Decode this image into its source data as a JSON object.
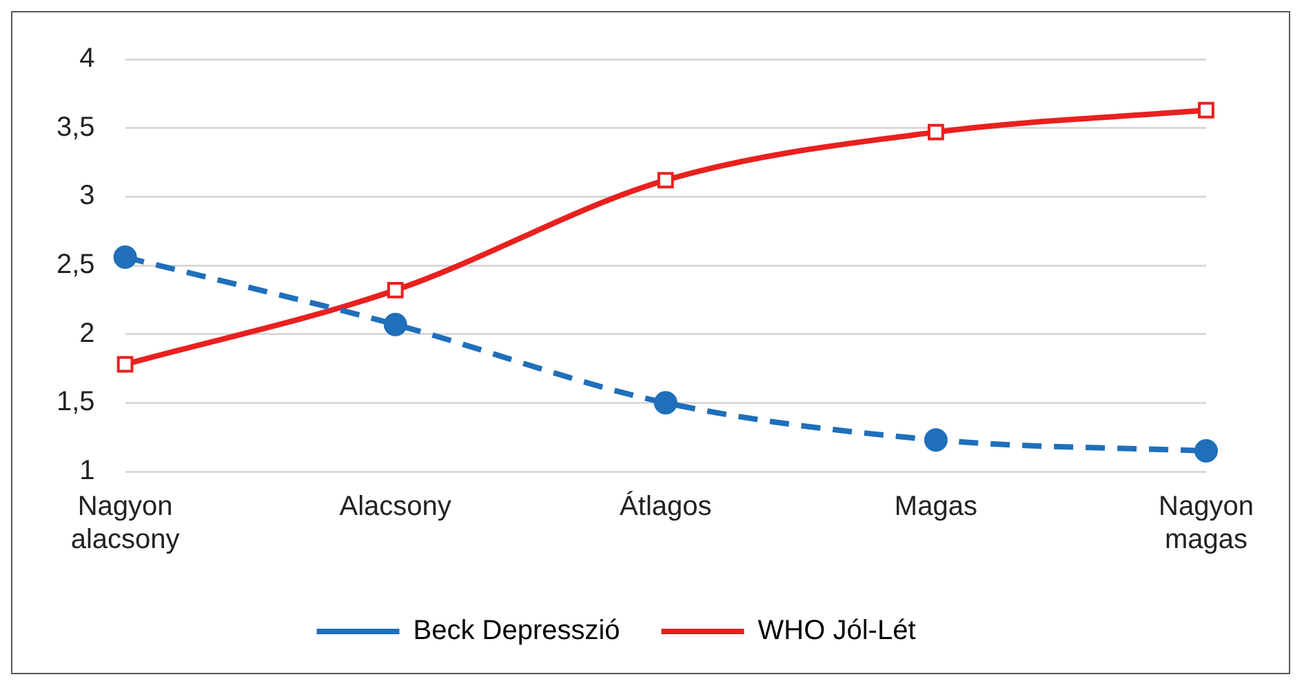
{
  "chart_data": {
    "type": "line",
    "categories": [
      "Nagyon alacsony",
      "Alacsony",
      "Átlagos",
      "Magas",
      "Nagyon magas"
    ],
    "series": [
      {
        "name": "Beck Depresszió",
        "color": "#1f6fba",
        "values": [
          2.56,
          2.07,
          1.5,
          1.23,
          1.15
        ],
        "marker": "circle",
        "line_style": "dashed"
      },
      {
        "name": "WHO Jól-Lét",
        "color": "#e8211f",
        "values": [
          1.78,
          2.32,
          3.12,
          3.47,
          3.63
        ],
        "marker": "square",
        "line_style": "solid"
      }
    ],
    "ylim": [
      1,
      4
    ],
    "yticks": [
      {
        "value": 1,
        "label": "1"
      },
      {
        "value": 1.5,
        "label": "1,5"
      },
      {
        "value": 2,
        "label": "2"
      },
      {
        "value": 2.5,
        "label": "2,5"
      },
      {
        "value": 3,
        "label": "3"
      },
      {
        "value": 3.5,
        "label": "3,5"
      },
      {
        "value": 4,
        "label": "4"
      }
    ],
    "grid": "y",
    "legend": "bottom"
  }
}
